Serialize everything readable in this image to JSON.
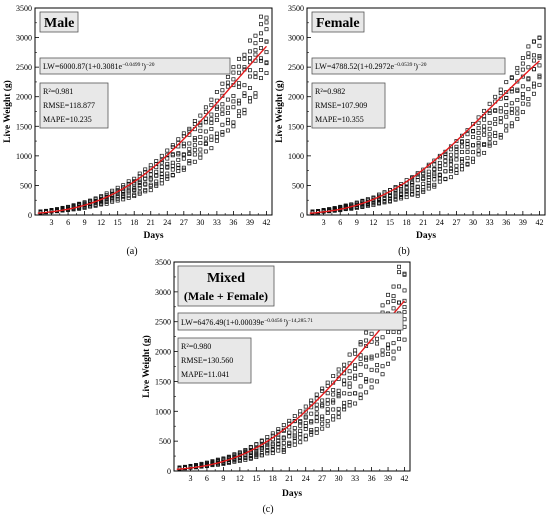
{
  "figure": {
    "panel_letters": [
      "(a)",
      "(b)",
      "(c)"
    ]
  },
  "chart_data": [
    {
      "type": "scatter",
      "title": "Male",
      "equation": "LW=6000.87(1+0.3081e",
      "equation_exp": "−0.0499 t",
      "equation_power": ")−20",
      "stats": [
        "R²=0.981",
        "RMSE=118.877",
        "MAPE=10.235"
      ],
      "xlabel": "Days",
      "ylabel": "Live Weight (g)",
      "xlim": [
        0,
        43
      ],
      "ylim": [
        0,
        3500
      ],
      "xticks": [
        3,
        6,
        9,
        12,
        15,
        18,
        21,
        24,
        27,
        30,
        33,
        36,
        39,
        42
      ],
      "yticks": [
        0,
        500,
        1000,
        1500,
        2000,
        2500,
        3000,
        3500
      ],
      "marker": "open-square",
      "fit_color": "#e41a1c",
      "fit": {
        "A": 6000.87,
        "b": 0.3081,
        "k": 0.0499,
        "c": 20
      },
      "observed": {
        "days": [
          1,
          2,
          3,
          4,
          5,
          6,
          7,
          8,
          9,
          10,
          11,
          12,
          13,
          14,
          15,
          16,
          17,
          18,
          19,
          20,
          21,
          22,
          23,
          24,
          25,
          26,
          27,
          28,
          29,
          30,
          31,
          32,
          33,
          34,
          35,
          36,
          37,
          38,
          39,
          40,
          41,
          42
        ],
        "min": [
          40,
          45,
          55,
          62,
          72,
          82,
          95,
          105,
          118,
          135,
          150,
          170,
          190,
          215,
          240,
          265,
          290,
          320,
          360,
          400,
          420,
          480,
          520,
          580,
          640,
          700,
          760,
          830,
          900,
          970,
          1060,
          1130,
          1220,
          1300,
          1400,
          1500,
          1600,
          1720,
          1850,
          2000,
          2300,
          2400
        ],
        "max": [
          60,
          70,
          85,
          100,
          120,
          140,
          165,
          190,
          215,
          245,
          280,
          320,
          365,
          410,
          460,
          510,
          570,
          630,
          700,
          770,
          840,
          920,
          1000,
          1090,
          1180,
          1280,
          1380,
          1480,
          1590,
          1700,
          1820,
          1950,
          2080,
          2220,
          2360,
          2500,
          2640,
          2780,
          2950,
          3100,
          3420,
          3350
        ]
      }
    },
    {
      "type": "scatter",
      "title": "Female",
      "equation": "LW=4788.52(1+0.2972e",
      "equation_exp": "−0.0539 t",
      "equation_power": ")−20",
      "stats": [
        "R²=0.982",
        "RMSE=107.909",
        "MAPE=10.355"
      ],
      "xlabel": "Days",
      "ylabel": "Live Weight (g)",
      "xlim": [
        0,
        43
      ],
      "ylim": [
        0,
        3500
      ],
      "xticks": [
        3,
        6,
        9,
        12,
        15,
        18,
        21,
        24,
        27,
        30,
        33,
        36,
        39,
        42
      ],
      "yticks": [
        0,
        500,
        1000,
        1500,
        2000,
        2500,
        3000,
        3500
      ],
      "marker": "open-square",
      "fit_color": "#e41a1c",
      "fit": {
        "A": 4788.52,
        "b": 0.2972,
        "k": 0.0539,
        "c": 20
      },
      "observed": {
        "days": [
          1,
          2,
          3,
          4,
          5,
          6,
          7,
          8,
          9,
          10,
          11,
          12,
          13,
          14,
          15,
          16,
          17,
          18,
          19,
          20,
          21,
          22,
          23,
          24,
          25,
          26,
          27,
          28,
          29,
          30,
          31,
          32,
          33,
          34,
          35,
          36,
          37,
          38,
          39,
          40,
          41,
          42
        ],
        "min": [
          40,
          45,
          55,
          62,
          72,
          82,
          95,
          105,
          118,
          135,
          150,
          168,
          185,
          205,
          228,
          250,
          275,
          300,
          330,
          300,
          390,
          440,
          480,
          530,
          580,
          640,
          700,
          760,
          830,
          900,
          980,
          1050,
          1130,
          1220,
          1310,
          1400,
          1500,
          1620,
          1740,
          1870,
          2050,
          2200
        ],
        "max": [
          60,
          70,
          85,
          100,
          118,
          138,
          160,
          185,
          210,
          240,
          270,
          305,
          345,
          390,
          435,
          485,
          535,
          590,
          650,
          720,
          780,
          850,
          920,
          1000,
          1080,
          1160,
          1250,
          1340,
          1440,
          1540,
          1650,
          1760,
          1880,
          2000,
          2120,
          2250,
          2380,
          2520,
          2680,
          2850,
          3000,
          3050
        ]
      }
    },
    {
      "type": "scatter",
      "title": "Mixed",
      "subtitle": "(Male + Female)",
      "equation": "LW=6476.49(1+0.00039e",
      "equation_exp": "−0.0456 t",
      "equation_power": ")−14,285.71",
      "stats": [
        "R²=0.980",
        "RMSE=130.560",
        "MAPE=11.041"
      ],
      "xlabel": "Days",
      "ylabel": "Live Weight (g)",
      "xlim": [
        0,
        43
      ],
      "ylim": [
        0,
        3500
      ],
      "xticks": [
        3,
        6,
        9,
        12,
        15,
        18,
        21,
        24,
        27,
        30,
        33,
        36,
        39,
        42
      ],
      "yticks": [
        0,
        500,
        1000,
        1500,
        2000,
        2500,
        3000,
        3500
      ],
      "marker": "open-square",
      "fit_color": "#e41a1c",
      "fit": {
        "A": 6476.49,
        "b": 0.00039,
        "k": 0.0456,
        "c": 14285.71
      },
      "observed": {
        "days": [
          1,
          2,
          3,
          4,
          5,
          6,
          7,
          8,
          9,
          10,
          11,
          12,
          13,
          14,
          15,
          16,
          17,
          18,
          19,
          20,
          21,
          22,
          23,
          24,
          25,
          26,
          27,
          28,
          29,
          30,
          31,
          32,
          33,
          34,
          35,
          36,
          37,
          38,
          39,
          40,
          41,
          42
        ],
        "min": [
          40,
          45,
          55,
          62,
          72,
          82,
          95,
          105,
          118,
          135,
          150,
          168,
          185,
          205,
          228,
          250,
          275,
          300,
          330,
          300,
          390,
          440,
          480,
          530,
          580,
          640,
          700,
          760,
          830,
          900,
          980,
          1050,
          1130,
          1220,
          1310,
          1400,
          1500,
          1620,
          1740,
          1870,
          2050,
          2200
        ],
        "max": [
          60,
          70,
          85,
          100,
          120,
          140,
          165,
          190,
          215,
          245,
          280,
          320,
          365,
          410,
          460,
          510,
          570,
          630,
          700,
          770,
          840,
          920,
          1000,
          1090,
          1180,
          1280,
          1380,
          1480,
          1590,
          1700,
          1820,
          1950,
          2080,
          2220,
          2360,
          2500,
          2640,
          2780,
          2950,
          3100,
          3420,
          3350
        ]
      }
    }
  ]
}
